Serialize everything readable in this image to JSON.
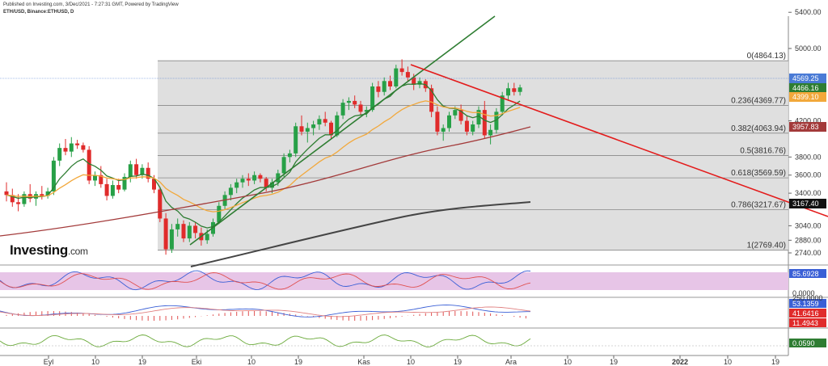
{
  "header": {
    "published": "Published on Investing.com, 3/Dec/2021 - 7:27:31 GMT, Powered by TradingView",
    "symbol": "ETH/USD, Binance:ETHUSD, D"
  },
  "logo": {
    "text": "Investing",
    "suffix": ".com"
  },
  "colors": {
    "up": "#27a047",
    "down": "#e02b2b",
    "ema20": "#2e7d32",
    "ema50": "#f2a83b",
    "ema100": "#a33a3a",
    "ema200": "#444444",
    "trend_up": "#2e7d32",
    "trend_down": "#e31b1b",
    "fib_zone": "#dcdcdc"
  },
  "chart_data": {
    "type": "candlestick",
    "title": "ETH/USD, Binance:ETHUSD, D",
    "y_ticks": [
      "5400.00",
      "5000.00",
      "4200.00",
      "3800.00",
      "3600.00",
      "3400.00",
      "3040.00",
      "2880.00",
      "2740.00"
    ],
    "x_ticks": [
      "Eyl",
      "10",
      "19",
      "Eki",
      "10",
      "19",
      "Kas",
      "10",
      "19",
      "Ara",
      "10",
      "19",
      "2022",
      "10",
      "19"
    ],
    "price_labels": [
      {
        "text": "4569.25",
        "color": "#4a7bd6"
      },
      {
        "text": "4466.16",
        "color": "#2e7d32"
      },
      {
        "text": "4399.10",
        "color": "#f2a83b"
      },
      {
        "text": "3957.83",
        "color": "#a33a3a"
      },
      {
        "text": "3167.40",
        "color": "#111111"
      }
    ],
    "fib_levels": [
      {
        "label": "0(4864.13)",
        "value": 4864.13
      },
      {
        "label": "0.236(4369.77)",
        "value": 4369.77
      },
      {
        "label": "0.382(4063.94)",
        "value": 4063.94
      },
      {
        "label": "0.5(3816.76)",
        "value": 3816.76
      },
      {
        "label": "0.618(3569.59)",
        "value": 3569.59
      },
      {
        "label": "0.786(3217.67)",
        "value": 3217.67
      },
      {
        "label": "1(2769.40)",
        "value": 2769.4
      }
    ],
    "candles": [
      [
        3420,
        3520,
        3310,
        3380
      ],
      [
        3380,
        3450,
        3250,
        3300
      ],
      [
        3300,
        3390,
        3200,
        3280
      ],
      [
        3280,
        3420,
        3250,
        3390
      ],
      [
        3390,
        3500,
        3300,
        3340
      ],
      [
        3340,
        3420,
        3260,
        3390
      ],
      [
        3390,
        3480,
        3330,
        3370
      ],
      [
        3370,
        3460,
        3340,
        3420
      ],
      [
        3420,
        3800,
        3380,
        3760
      ],
      [
        3760,
        3950,
        3700,
        3900
      ],
      [
        3900,
        4000,
        3820,
        3860
      ],
      [
        3860,
        4020,
        3800,
        3950
      ],
      [
        3950,
        3990,
        3890,
        3930
      ],
      [
        3930,
        3960,
        3850,
        3880
      ],
      [
        3880,
        3920,
        3500,
        3540
      ],
      [
        3540,
        3640,
        3480,
        3600
      ],
      [
        3600,
        3700,
        3460,
        3500
      ],
      [
        3500,
        3560,
        3320,
        3370
      ],
      [
        3370,
        3540,
        3340,
        3490
      ],
      [
        3490,
        3560,
        3400,
        3440
      ],
      [
        3440,
        3620,
        3420,
        3580
      ],
      [
        3580,
        3760,
        3520,
        3720
      ],
      [
        3720,
        3780,
        3560,
        3600
      ],
      [
        3600,
        3720,
        3560,
        3680
      ],
      [
        3680,
        3740,
        3520,
        3560
      ],
      [
        3560,
        3600,
        3400,
        3440
      ],
      [
        3440,
        3460,
        3080,
        3120
      ],
      [
        3120,
        3180,
        2720,
        2780
      ],
      [
        2780,
        3060,
        2740,
        3000
      ],
      [
        3000,
        3120,
        2920,
        3060
      ],
      [
        3060,
        3100,
        2860,
        2900
      ],
      [
        2900,
        3080,
        2860,
        3040
      ],
      [
        3040,
        3080,
        2900,
        2960
      ],
      [
        2960,
        3020,
        2820,
        2880
      ],
      [
        2880,
        3000,
        2840,
        2950
      ],
      [
        2950,
        3120,
        2920,
        3080
      ],
      [
        3080,
        3300,
        3060,
        3260
      ],
      [
        3260,
        3420,
        3220,
        3380
      ],
      [
        3380,
        3500,
        3320,
        3460
      ],
      [
        3460,
        3560,
        3400,
        3520
      ],
      [
        3520,
        3600,
        3460,
        3560
      ],
      [
        3560,
        3620,
        3480,
        3540
      ],
      [
        3540,
        3640,
        3500,
        3600
      ],
      [
        3600,
        3620,
        3520,
        3560
      ],
      [
        3560,
        3580,
        3420,
        3460
      ],
      [
        3460,
        3560,
        3400,
        3520
      ],
      [
        3520,
        3660,
        3480,
        3620
      ],
      [
        3620,
        3840,
        3580,
        3800
      ],
      [
        3800,
        3880,
        3740,
        3840
      ],
      [
        3840,
        4180,
        3800,
        4140
      ],
      [
        4140,
        4260,
        4040,
        4080
      ],
      [
        4080,
        4180,
        3960,
        4120
      ],
      [
        4120,
        4200,
        4040,
        4160
      ],
      [
        4160,
        4260,
        4100,
        4220
      ],
      [
        4220,
        4300,
        4140,
        4180
      ],
      [
        4180,
        4200,
        4000,
        4040
      ],
      [
        4040,
        4300,
        4020,
        4260
      ],
      [
        4260,
        4440,
        4220,
        4400
      ],
      [
        4400,
        4460,
        4320,
        4420
      ],
      [
        4420,
        4480,
        4340,
        4380
      ],
      [
        4380,
        4420,
        4260,
        4300
      ],
      [
        4300,
        4360,
        4240,
        4320
      ],
      [
        4320,
        4620,
        4300,
        4580
      ],
      [
        4580,
        4640,
        4460,
        4520
      ],
      [
        4520,
        4680,
        4480,
        4640
      ],
      [
        4640,
        4700,
        4540,
        4580
      ],
      [
        4580,
        4820,
        4560,
        4780
      ],
      [
        4780,
        4880,
        4700,
        4740
      ],
      [
        4740,
        4800,
        4640,
        4680
      ],
      [
        4680,
        4720,
        4540,
        4600
      ],
      [
        4600,
        4680,
        4560,
        4640
      ],
      [
        4640,
        4660,
        4520,
        4560
      ],
      [
        4560,
        4600,
        4240,
        4300
      ],
      [
        4300,
        4360,
        4040,
        4080
      ],
      [
        4080,
        4160,
        3980,
        4120
      ],
      [
        4120,
        4300,
        4080,
        4260
      ],
      [
        4260,
        4360,
        4220,
        4320
      ],
      [
        4320,
        4380,
        4160,
        4200
      ],
      [
        4200,
        4260,
        4040,
        4080
      ],
      [
        4080,
        4200,
        4040,
        4160
      ],
      [
        4160,
        4360,
        4120,
        4320
      ],
      [
        4320,
        4420,
        4000,
        4040
      ],
      [
        4040,
        4160,
        3940,
        4100
      ],
      [
        4100,
        4340,
        4060,
        4300
      ],
      [
        4300,
        4520,
        4260,
        4480
      ],
      [
        4480,
        4620,
        4420,
        4560
      ],
      [
        4560,
        4620,
        4480,
        4520
      ],
      [
        4520,
        4600,
        4480,
        4569
      ]
    ]
  },
  "oscillators": {
    "stoch_label": "85.6928",
    "stoch_axis": "0.0000",
    "macd_labels": [
      "53.1359",
      "41.6416",
      "11.4943"
    ],
    "macd_axis": "250.0000",
    "third_label": "0.0590"
  }
}
